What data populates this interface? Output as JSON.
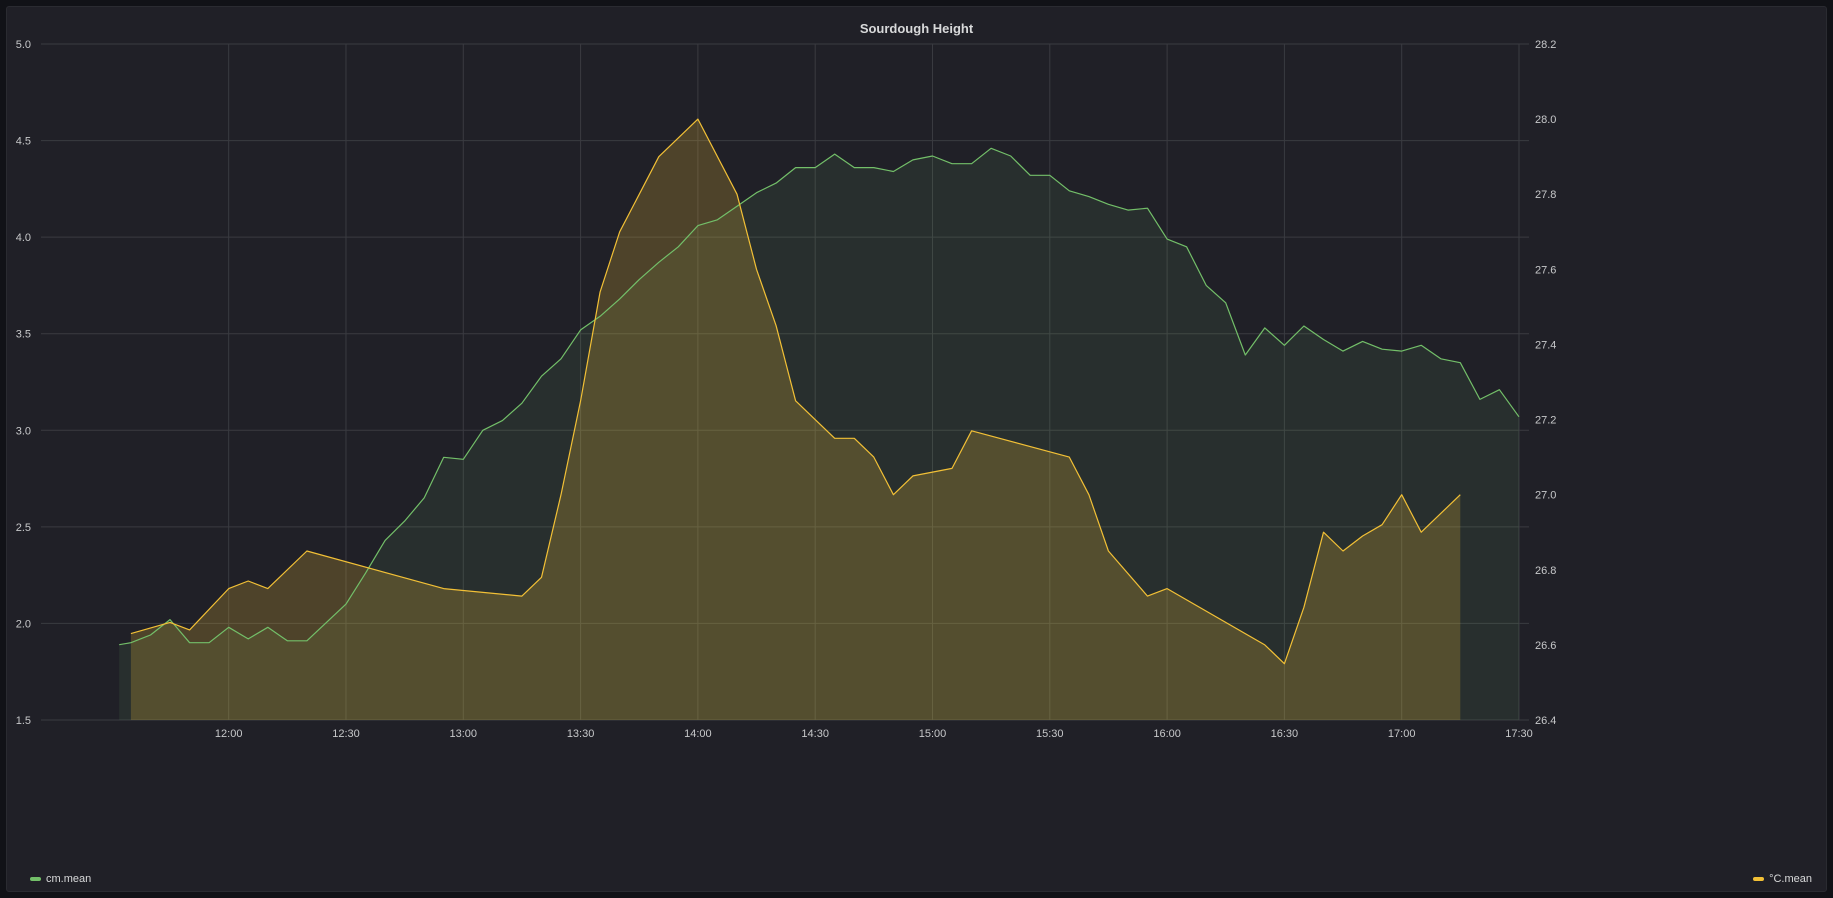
{
  "chart_data": {
    "type": "line",
    "title": "Sourdough Height",
    "x_ticks": [
      "12:00",
      "12:30",
      "13:00",
      "13:30",
      "14:00",
      "14:30",
      "15:00",
      "15:30",
      "16:00",
      "16:30",
      "17:00",
      "17:30"
    ],
    "x_range_minutes": [
      672,
      1050
    ],
    "y_left": {
      "range": [
        1.5,
        5.0
      ],
      "ticks": [
        "1.5",
        "2.0",
        "2.5",
        "3.0",
        "3.5",
        "4.0",
        "4.5",
        "5.0"
      ]
    },
    "y_right": {
      "range": [
        26.4,
        28.2
      ],
      "ticks": [
        "26.4",
        "26.6",
        "26.8",
        "27.0",
        "27.2",
        "27.4",
        "27.6",
        "27.8",
        "28.0",
        "28.2"
      ]
    },
    "grid": true,
    "legend_placement": "bottom",
    "series": [
      {
        "name": "cm.mean",
        "axis": "left",
        "color": "#73bf69",
        "x": [
          "11:32",
          "11:35",
          "11:40",
          "11:45",
          "11:50",
          "11:55",
          "12:00",
          "12:05",
          "12:10",
          "12:15",
          "12:20",
          "12:30",
          "12:35",
          "12:40",
          "12:45",
          "12:50",
          "12:55",
          "13:00",
          "13:05",
          "13:10",
          "13:15",
          "13:20",
          "13:25",
          "13:30",
          "13:35",
          "13:40",
          "13:45",
          "13:50",
          "13:55",
          "14:00",
          "14:05",
          "14:10",
          "14:15",
          "14:20",
          "14:25",
          "14:30",
          "14:35",
          "14:40",
          "14:45",
          "14:50",
          "14:55",
          "15:00",
          "15:05",
          "15:10",
          "15:15",
          "15:20",
          "15:25",
          "15:30",
          "15:35",
          "15:40",
          "15:45",
          "15:50",
          "15:55",
          "16:00",
          "16:05",
          "16:10",
          "16:15",
          "16:20",
          "16:25",
          "16:30",
          "16:35",
          "16:40",
          "16:45",
          "16:50",
          "16:55",
          "17:00",
          "17:05",
          "17:10",
          "17:15",
          "17:20",
          "17:25",
          "17:30"
        ],
        "values": [
          1.89,
          1.9,
          1.94,
          2.02,
          1.9,
          1.9,
          1.98,
          1.92,
          1.98,
          1.91,
          1.91,
          2.1,
          2.26,
          2.43,
          2.53,
          2.65,
          2.86,
          2.85,
          3.0,
          3.05,
          3.14,
          3.28,
          3.37,
          3.52,
          3.59,
          3.68,
          3.78,
          3.87,
          3.95,
          4.06,
          4.09,
          4.16,
          4.23,
          4.28,
          4.36,
          4.36,
          4.43,
          4.36,
          4.36,
          4.34,
          4.4,
          4.42,
          4.38,
          4.38,
          4.46,
          4.42,
          4.32,
          4.32,
          4.24,
          4.21,
          4.17,
          4.14,
          4.15,
          3.99,
          3.95,
          3.75,
          3.66,
          3.39,
          3.53,
          3.44,
          3.54,
          3.47,
          3.41,
          3.46,
          3.42,
          3.41,
          3.44,
          3.37,
          3.35,
          3.16,
          3.21,
          3.07
        ]
      },
      {
        "name": "°C.mean",
        "axis": "right",
        "color": "#f2c036",
        "x": [
          "11:35",
          "11:45",
          "11:50",
          "12:00",
          "12:05",
          "12:10",
          "12:20",
          "12:55",
          "13:15",
          "13:20",
          "13:25",
          "13:30",
          "13:35",
          "13:40",
          "13:50",
          "14:00",
          "14:10",
          "14:15",
          "14:20",
          "14:25",
          "14:35",
          "14:40",
          "14:45",
          "14:50",
          "14:55",
          "15:05",
          "15:10",
          "15:35",
          "15:40",
          "15:45",
          "15:55",
          "16:00",
          "16:25",
          "16:30",
          "16:35",
          "16:40",
          "16:45",
          "16:50",
          "16:55",
          "17:00",
          "17:05",
          "17:15"
        ],
        "values": [
          26.63,
          26.66,
          26.64,
          26.75,
          26.77,
          26.75,
          26.85,
          26.75,
          26.73,
          26.78,
          27.0,
          27.25,
          27.54,
          27.7,
          27.9,
          28.0,
          27.8,
          27.6,
          27.45,
          27.25,
          27.15,
          27.15,
          27.1,
          27.0,
          27.05,
          27.07,
          27.17,
          27.1,
          27.0,
          26.85,
          26.73,
          26.75,
          26.6,
          26.55,
          26.7,
          26.9,
          26.85,
          26.89,
          26.92,
          27.0,
          26.9,
          27.0
        ]
      }
    ]
  }
}
